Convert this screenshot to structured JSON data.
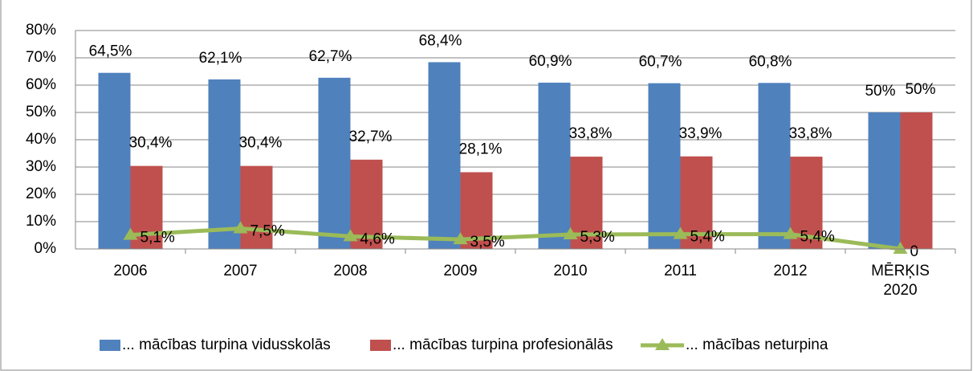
{
  "chart_data": {
    "type": "bar",
    "categories": [
      "2006",
      "2007",
      "2008",
      "2009",
      "2010",
      "2011",
      "2012",
      "MĒRĶIS\n2020"
    ],
    "series": [
      {
        "name": "... mācības turpina vidusskolās",
        "color": "#4f81bd",
        "type": "bar",
        "values": [
          64.5,
          62.1,
          62.7,
          68.4,
          60.9,
          60.7,
          60.8,
          50
        ],
        "value_labels": [
          "64,5%",
          "62,1%",
          "62,7%",
          "68,4%",
          "60,9%",
          "60,7%",
          "60,8%",
          "50%"
        ]
      },
      {
        "name": "... mācības turpina profesionālās",
        "color": "#c0504d",
        "type": "bar",
        "values": [
          30.4,
          30.4,
          32.7,
          28.1,
          33.8,
          33.9,
          33.8,
          50
        ],
        "value_labels": [
          "30,4%",
          "30,4%",
          "32,7%",
          "28,1%",
          "33,8%",
          "33,9%",
          "33,8%",
          "50%"
        ]
      },
      {
        "name": "... mācības neturpina",
        "color": "#9bbb59",
        "type": "line",
        "values": [
          5.1,
          7.5,
          4.6,
          3.5,
          5.3,
          5.4,
          5.4,
          0
        ],
        "value_labels": [
          "5,1%",
          "7,5%",
          "4,6%",
          "3,5%",
          "5,3%",
          "5,4%",
          "5,4%",
          "0"
        ]
      }
    ],
    "ylim": [
      0,
      80
    ],
    "yticks": [
      {
        "value": 0,
        "label": "0%"
      },
      {
        "value": 10,
        "label": "10%"
      },
      {
        "value": 20,
        "label": "20%"
      },
      {
        "value": 30,
        "label": "30%"
      },
      {
        "value": 40,
        "label": "40%"
      },
      {
        "value": 50,
        "label": "50%"
      },
      {
        "value": 60,
        "label": "60%"
      },
      {
        "value": 70,
        "label": "70%"
      },
      {
        "value": 80,
        "label": "80%"
      }
    ],
    "grid": true,
    "legend": "bottom"
  }
}
